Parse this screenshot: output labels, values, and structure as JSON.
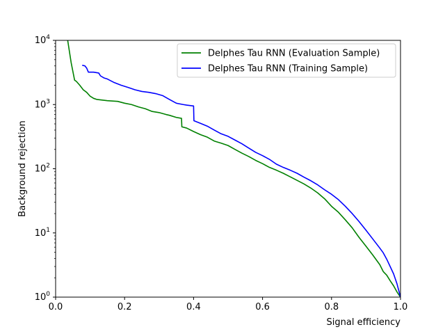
{
  "chart_data": {
    "type": "line",
    "title": "",
    "xlabel": "Signal efficiency",
    "ylabel": "Background rejection",
    "xlim": [
      0.0,
      1.0
    ],
    "ylim": [
      1,
      10000
    ],
    "yscale": "log",
    "grid": false,
    "legend_position": "top-right",
    "x_ticks": [
      "0.0",
      "0.2",
      "0.4",
      "0.6",
      "0.8",
      "1.0"
    ],
    "y_ticks": [
      {
        "base": "10",
        "exp": "0",
        "value": 1
      },
      {
        "base": "10",
        "exp": "1",
        "value": 10
      },
      {
        "base": "10",
        "exp": "2",
        "value": 100
      },
      {
        "base": "10",
        "exp": "3",
        "value": 1000
      },
      {
        "base": "10",
        "exp": "4",
        "value": 10000
      }
    ],
    "series": [
      {
        "name": "Delphes Tau RNN (Evaluation Sample)",
        "color": "#008000",
        "x": [
          0.035,
          0.045,
          0.055,
          0.06,
          0.07,
          0.08,
          0.09,
          0.1,
          0.11,
          0.12,
          0.15,
          0.18,
          0.2,
          0.22,
          0.24,
          0.26,
          0.28,
          0.3,
          0.32,
          0.33,
          0.35,
          0.365,
          0.366,
          0.38,
          0.4,
          0.42,
          0.44,
          0.46,
          0.48,
          0.5,
          0.52,
          0.54,
          0.56,
          0.58,
          0.6,
          0.62,
          0.64,
          0.66,
          0.68,
          0.7,
          0.72,
          0.74,
          0.76,
          0.78,
          0.8,
          0.82,
          0.84,
          0.86,
          0.88,
          0.9,
          0.92,
          0.94,
          0.95,
          0.96,
          0.97,
          0.98,
          0.99,
          1.0
        ],
        "y": [
          10000,
          4500,
          2400,
          2300,
          2000,
          1700,
          1550,
          1350,
          1250,
          1200,
          1150,
          1120,
          1050,
          1000,
          920,
          860,
          780,
          750,
          700,
          680,
          630,
          610,
          450,
          430,
          380,
          340,
          310,
          270,
          250,
          230,
          200,
          175,
          155,
          135,
          120,
          105,
          95,
          85,
          75,
          66,
          58,
          50,
          42,
          34,
          26,
          21,
          16,
          12,
          8.5,
          6.2,
          4.5,
          3.2,
          2.5,
          2.2,
          1.8,
          1.5,
          1.2,
          1.0
        ]
      },
      {
        "name": "Delphes Tau RNN (Training Sample)",
        "color": "#0000ff",
        "x": [
          0.077,
          0.085,
          0.09,
          0.095,
          0.1,
          0.11,
          0.125,
          0.13,
          0.14,
          0.15,
          0.17,
          0.19,
          0.21,
          0.23,
          0.25,
          0.27,
          0.29,
          0.31,
          0.33,
          0.35,
          0.37,
          0.38,
          0.4,
          0.401,
          0.42,
          0.44,
          0.46,
          0.48,
          0.5,
          0.52,
          0.54,
          0.56,
          0.58,
          0.6,
          0.62,
          0.64,
          0.66,
          0.68,
          0.7,
          0.72,
          0.74,
          0.76,
          0.78,
          0.8,
          0.82,
          0.84,
          0.86,
          0.88,
          0.9,
          0.92,
          0.94,
          0.95,
          0.96,
          0.97,
          0.98,
          0.99,
          1.0
        ],
        "y": [
          4100,
          4000,
          3700,
          3200,
          3200,
          3200,
          3100,
          2800,
          2600,
          2500,
          2200,
          2000,
          1850,
          1700,
          1600,
          1550,
          1480,
          1380,
          1200,
          1050,
          1000,
          980,
          950,
          560,
          510,
          460,
          400,
          350,
          320,
          280,
          245,
          210,
          180,
          160,
          140,
          118,
          105,
          95,
          85,
          74,
          65,
          56,
          47,
          40,
          33,
          26,
          20,
          15,
          11,
          8,
          5.8,
          4.9,
          3.9,
          3.0,
          2.3,
          1.6,
          1.0
        ]
      }
    ]
  }
}
